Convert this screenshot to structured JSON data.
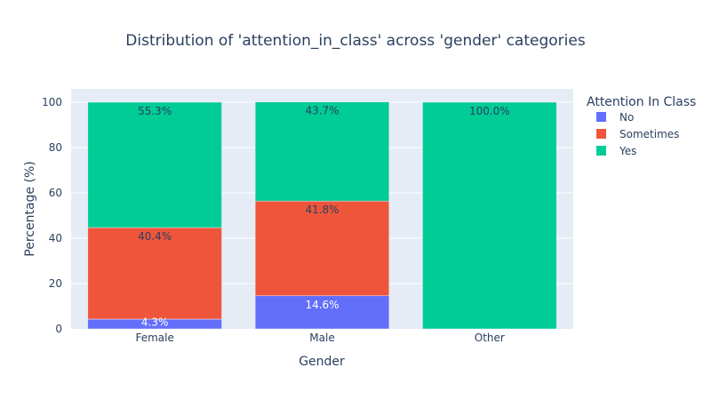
{
  "chart_data": {
    "type": "bar",
    "stacked": true,
    "title": "Distribution of 'attention_in_class' across 'gender' categories",
    "xlabel": "Gender",
    "ylabel": "Percentage (%)",
    "ylim": [
      0,
      100
    ],
    "yticks": [
      "0",
      "20",
      "40",
      "60",
      "80",
      "100"
    ],
    "categories": [
      "Female",
      "Male",
      "Other"
    ],
    "legend_title": "Attention In Class",
    "legend_position": "top-right",
    "grid": true,
    "background_color": "#e5ecf6",
    "series": [
      {
        "name": "No",
        "color": "#636efa",
        "values": [
          4.3,
          14.6,
          0
        ],
        "labels": [
          "4.3%",
          "14.6%",
          ""
        ],
        "label_color": "#ffffff"
      },
      {
        "name": "Sometimes",
        "color": "#ef553b",
        "values": [
          40.4,
          41.8,
          0
        ],
        "labels": [
          "40.4%",
          "41.8%",
          ""
        ],
        "label_color": "#2a3f5f"
      },
      {
        "name": "Yes",
        "color": "#00cc96",
        "values": [
          55.3,
          43.7,
          100
        ],
        "labels": [
          "55.3%",
          "43.7%",
          "100.0%"
        ],
        "label_color": "#2a3f5f"
      }
    ]
  }
}
